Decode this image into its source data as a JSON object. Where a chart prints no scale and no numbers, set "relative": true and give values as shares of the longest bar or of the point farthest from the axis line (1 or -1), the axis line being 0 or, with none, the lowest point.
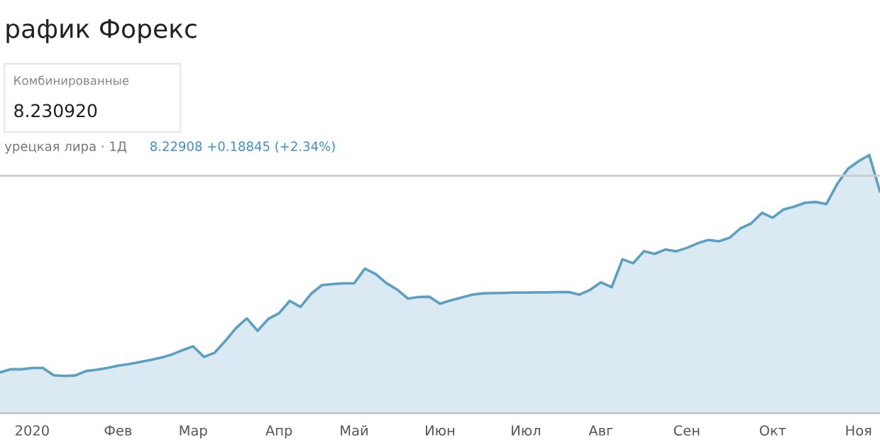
{
  "chart_data": {
    "type": "area",
    "title": "рафик Форекс",
    "subtitle": "урецкая лира · 1Д",
    "annotations": [
      "Комбинированные",
      "8.230920",
      "8.22908 +0.18845 (+2.34%)"
    ],
    "relative": true,
    "grid": false,
    "categories": [
      null,
      null,
      null,
      "2020",
      null,
      null,
      null,
      null,
      null,
      null,
      null,
      "Фев",
      null,
      null,
      null,
      null,
      null,
      null,
      "Мар",
      null,
      null,
      null,
      null,
      null,
      null,
      null,
      "Апр",
      null,
      null,
      null,
      null,
      null,
      null,
      "Май",
      null,
      null,
      null,
      null,
      null,
      null,
      null,
      "Июн",
      null,
      null,
      null,
      null,
      null,
      null,
      null,
      "Июл",
      null,
      null,
      null,
      null,
      null,
      null,
      "Авг",
      null,
      null,
      null,
      null,
      null,
      null,
      null,
      "Сен",
      null,
      null,
      null,
      null,
      null,
      null,
      null,
      "Окт",
      null,
      null,
      null,
      null,
      null,
      null,
      null,
      "Ноя",
      null,
      null
    ],
    "ref_lines": [
      {
        "axis": "y",
        "value": 0.92,
        "label": null,
        "color": "#cccccc"
      }
    ],
    "series": [
      {
        "color": "#5b9fc2",
        "values": [
          0.158,
          0.17,
          0.17,
          0.175,
          0.175,
          0.147,
          0.144,
          0.146,
          0.163,
          0.168,
          0.175,
          0.184,
          0.19,
          0.198,
          0.206,
          0.215,
          0.227,
          0.244,
          0.259,
          0.218,
          0.234,
          0.28,
          0.33,
          0.367,
          0.319,
          0.365,
          0.387,
          0.435,
          0.412,
          0.463,
          0.496,
          0.5,
          0.503,
          0.503,
          0.56,
          0.539,
          0.504,
          0.479,
          0.444,
          0.45,
          0.451,
          0.424,
          0.437,
          0.448,
          0.459,
          0.464,
          0.465,
          0.466,
          0.467,
          0.467,
          0.468,
          0.468,
          0.469,
          0.469,
          0.459,
          0.478,
          0.507,
          0.488,
          0.596,
          0.581,
          0.627,
          0.617,
          0.634,
          0.627,
          0.64,
          0.658,
          0.671,
          0.666,
          0.68,
          0.716,
          0.735,
          0.776,
          0.757,
          0.789,
          0.8,
          0.815,
          0.818,
          0.81,
          0.887,
          0.946,
          0.976,
          1.0,
          0.858
        ]
      }
    ]
  }
}
